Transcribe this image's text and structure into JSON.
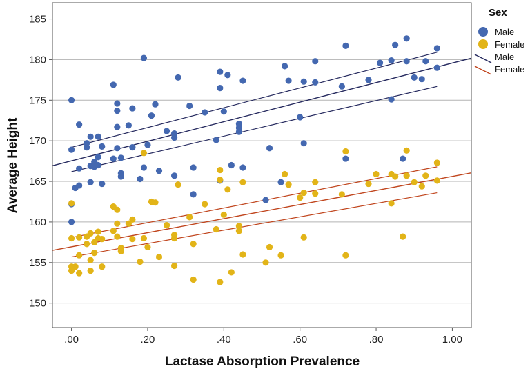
{
  "chart_data": {
    "type": "scatter",
    "title": "",
    "xlabel": "Lactase Absorption Prevalence",
    "ylabel": "Average Height",
    "xlim": [
      -0.05,
      1.05
    ],
    "ylim": [
      147,
      187
    ],
    "x_ticks": [
      0.0,
      0.2,
      0.4,
      0.6,
      0.8,
      1.0
    ],
    "x_tick_labels": [
      ".00",
      ".20",
      ".40",
      ".60",
      ".80",
      "1.00"
    ],
    "y_ticks": [
      150,
      155,
      160,
      165,
      170,
      175,
      180,
      185
    ],
    "y_tick_labels": [
      "150",
      "155",
      "160",
      "165",
      "170",
      "175",
      "180",
      "185"
    ],
    "grid": "horizontal",
    "legend": {
      "title": "Sex",
      "position": "top-right",
      "marker_entries": [
        "Male",
        "Female"
      ],
      "line_entries": [
        "Male",
        "Female"
      ]
    },
    "series": [
      {
        "name": "Male",
        "color": "#4468b0",
        "points": [
          [
            0.0,
            175.0
          ],
          [
            0.0,
            168.9
          ],
          [
            0.0,
            162.2
          ],
          [
            0.0,
            160.0
          ],
          [
            0.01,
            164.2
          ],
          [
            0.02,
            172.0
          ],
          [
            0.02,
            166.6
          ],
          [
            0.02,
            164.5
          ],
          [
            0.04,
            169.7
          ],
          [
            0.04,
            169.2
          ],
          [
            0.05,
            170.5
          ],
          [
            0.05,
            166.9
          ],
          [
            0.05,
            164.9
          ],
          [
            0.06,
            167.4
          ],
          [
            0.06,
            166.8
          ],
          [
            0.07,
            170.5
          ],
          [
            0.07,
            168.0
          ],
          [
            0.07,
            167.0
          ],
          [
            0.08,
            169.3
          ],
          [
            0.08,
            164.7
          ],
          [
            0.11,
            176.9
          ],
          [
            0.11,
            167.8
          ],
          [
            0.12,
            174.6
          ],
          [
            0.12,
            173.7
          ],
          [
            0.12,
            171.7
          ],
          [
            0.12,
            169.1
          ],
          [
            0.13,
            167.9
          ],
          [
            0.13,
            166.0
          ],
          [
            0.13,
            165.6
          ],
          [
            0.15,
            171.9
          ],
          [
            0.16,
            174.0
          ],
          [
            0.16,
            169.2
          ],
          [
            0.18,
            165.3
          ],
          [
            0.19,
            180.2
          ],
          [
            0.19,
            166.7
          ],
          [
            0.2,
            169.5
          ],
          [
            0.21,
            173.1
          ],
          [
            0.22,
            174.5
          ],
          [
            0.23,
            166.3
          ],
          [
            0.25,
            171.2
          ],
          [
            0.27,
            170.9
          ],
          [
            0.27,
            170.4
          ],
          [
            0.27,
            165.7
          ],
          [
            0.28,
            177.8
          ],
          [
            0.31,
            174.3
          ],
          [
            0.32,
            166.7
          ],
          [
            0.32,
            163.4
          ],
          [
            0.35,
            173.5
          ],
          [
            0.38,
            170.1
          ],
          [
            0.39,
            178.5
          ],
          [
            0.39,
            176.5
          ],
          [
            0.39,
            165.1
          ],
          [
            0.4,
            173.6
          ],
          [
            0.41,
            178.1
          ],
          [
            0.42,
            167.0
          ],
          [
            0.44,
            172.1
          ],
          [
            0.44,
            171.6
          ],
          [
            0.44,
            171.1
          ],
          [
            0.45,
            177.4
          ],
          [
            0.45,
            166.7
          ],
          [
            0.51,
            162.7
          ],
          [
            0.52,
            169.1
          ],
          [
            0.55,
            164.9
          ],
          [
            0.56,
            179.2
          ],
          [
            0.57,
            177.4
          ],
          [
            0.6,
            172.9
          ],
          [
            0.61,
            177.3
          ],
          [
            0.61,
            169.7
          ],
          [
            0.64,
            179.8
          ],
          [
            0.64,
            177.2
          ],
          [
            0.71,
            176.7
          ],
          [
            0.72,
            181.7
          ],
          [
            0.72,
            167.8
          ],
          [
            0.78,
            177.5
          ],
          [
            0.81,
            179.6
          ],
          [
            0.84,
            179.9
          ],
          [
            0.84,
            175.1
          ],
          [
            0.85,
            181.8
          ],
          [
            0.87,
            167.8
          ],
          [
            0.88,
            182.6
          ],
          [
            0.88,
            179.8
          ],
          [
            0.9,
            177.8
          ],
          [
            0.92,
            177.6
          ],
          [
            0.93,
            179.8
          ],
          [
            0.96,
            181.4
          ],
          [
            0.96,
            179.0
          ]
        ],
        "fit": {
          "x": [
            -0.05,
            1.05
          ],
          "y": [
            166.93,
            180.18
          ],
          "ci_x": [
            0.0,
            0.96
          ],
          "ci_upper": [
            169.2,
            180.9
          ],
          "ci_lower": [
            166.2,
            176.7
          ]
        }
      },
      {
        "name": "Female",
        "color": "#e2b418",
        "points": [
          [
            0.0,
            162.3
          ],
          [
            0.0,
            158.0
          ],
          [
            0.0,
            154.5
          ],
          [
            0.0,
            154.0
          ],
          [
            0.01,
            154.5
          ],
          [
            0.02,
            158.1
          ],
          [
            0.02,
            155.9
          ],
          [
            0.02,
            153.7
          ],
          [
            0.04,
            158.2
          ],
          [
            0.04,
            157.3
          ],
          [
            0.05,
            158.6
          ],
          [
            0.05,
            155.3
          ],
          [
            0.05,
            154.0
          ],
          [
            0.06,
            157.5
          ],
          [
            0.06,
            156.2
          ],
          [
            0.07,
            158.8
          ],
          [
            0.07,
            158.0
          ],
          [
            0.08,
            157.9
          ],
          [
            0.08,
            154.5
          ],
          [
            0.11,
            161.9
          ],
          [
            0.11,
            158.9
          ],
          [
            0.12,
            161.5
          ],
          [
            0.12,
            159.8
          ],
          [
            0.12,
            158.2
          ],
          [
            0.13,
            156.8
          ],
          [
            0.13,
            156.4
          ],
          [
            0.15,
            159.8
          ],
          [
            0.16,
            160.3
          ],
          [
            0.16,
            157.9
          ],
          [
            0.18,
            155.1
          ],
          [
            0.19,
            168.5
          ],
          [
            0.19,
            158.0
          ],
          [
            0.2,
            156.9
          ],
          [
            0.21,
            162.5
          ],
          [
            0.22,
            162.4
          ],
          [
            0.23,
            155.7
          ],
          [
            0.25,
            159.6
          ],
          [
            0.27,
            158.4
          ],
          [
            0.27,
            158.0
          ],
          [
            0.27,
            154.6
          ],
          [
            0.28,
            164.6
          ],
          [
            0.31,
            160.6
          ],
          [
            0.32,
            157.3
          ],
          [
            0.32,
            152.9
          ],
          [
            0.35,
            162.2
          ],
          [
            0.38,
            159.1
          ],
          [
            0.39,
            166.4
          ],
          [
            0.39,
            165.2
          ],
          [
            0.39,
            152.6
          ],
          [
            0.4,
            160.9
          ],
          [
            0.41,
            164.0
          ],
          [
            0.42,
            153.8
          ],
          [
            0.44,
            159.5
          ],
          [
            0.44,
            158.9
          ],
          [
            0.45,
            164.9
          ],
          [
            0.45,
            156.0
          ],
          [
            0.51,
            155.0
          ],
          [
            0.52,
            156.9
          ],
          [
            0.55,
            155.9
          ],
          [
            0.56,
            165.9
          ],
          [
            0.57,
            164.6
          ],
          [
            0.6,
            163.0
          ],
          [
            0.61,
            163.6
          ],
          [
            0.61,
            158.1
          ],
          [
            0.64,
            164.9
          ],
          [
            0.64,
            163.5
          ],
          [
            0.71,
            163.4
          ],
          [
            0.72,
            168.7
          ],
          [
            0.72,
            155.9
          ],
          [
            0.78,
            164.7
          ],
          [
            0.8,
            165.9
          ],
          [
            0.84,
            165.9
          ],
          [
            0.84,
            162.3
          ],
          [
            0.85,
            165.6
          ],
          [
            0.87,
            158.2
          ],
          [
            0.88,
            168.8
          ],
          [
            0.88,
            165.7
          ],
          [
            0.9,
            164.9
          ],
          [
            0.92,
            164.4
          ],
          [
            0.93,
            165.7
          ],
          [
            0.96,
            167.3
          ],
          [
            0.96,
            165.1
          ]
        ],
        "fit": {
          "x": [
            -0.05,
            1.05
          ],
          "y": [
            156.51,
            166.05
          ],
          "ci_x": [
            0.0,
            0.96
          ],
          "ci_upper": [
            158.1,
            166.8
          ],
          "ci_lower": [
            155.7,
            163.6
          ]
        }
      }
    ]
  }
}
